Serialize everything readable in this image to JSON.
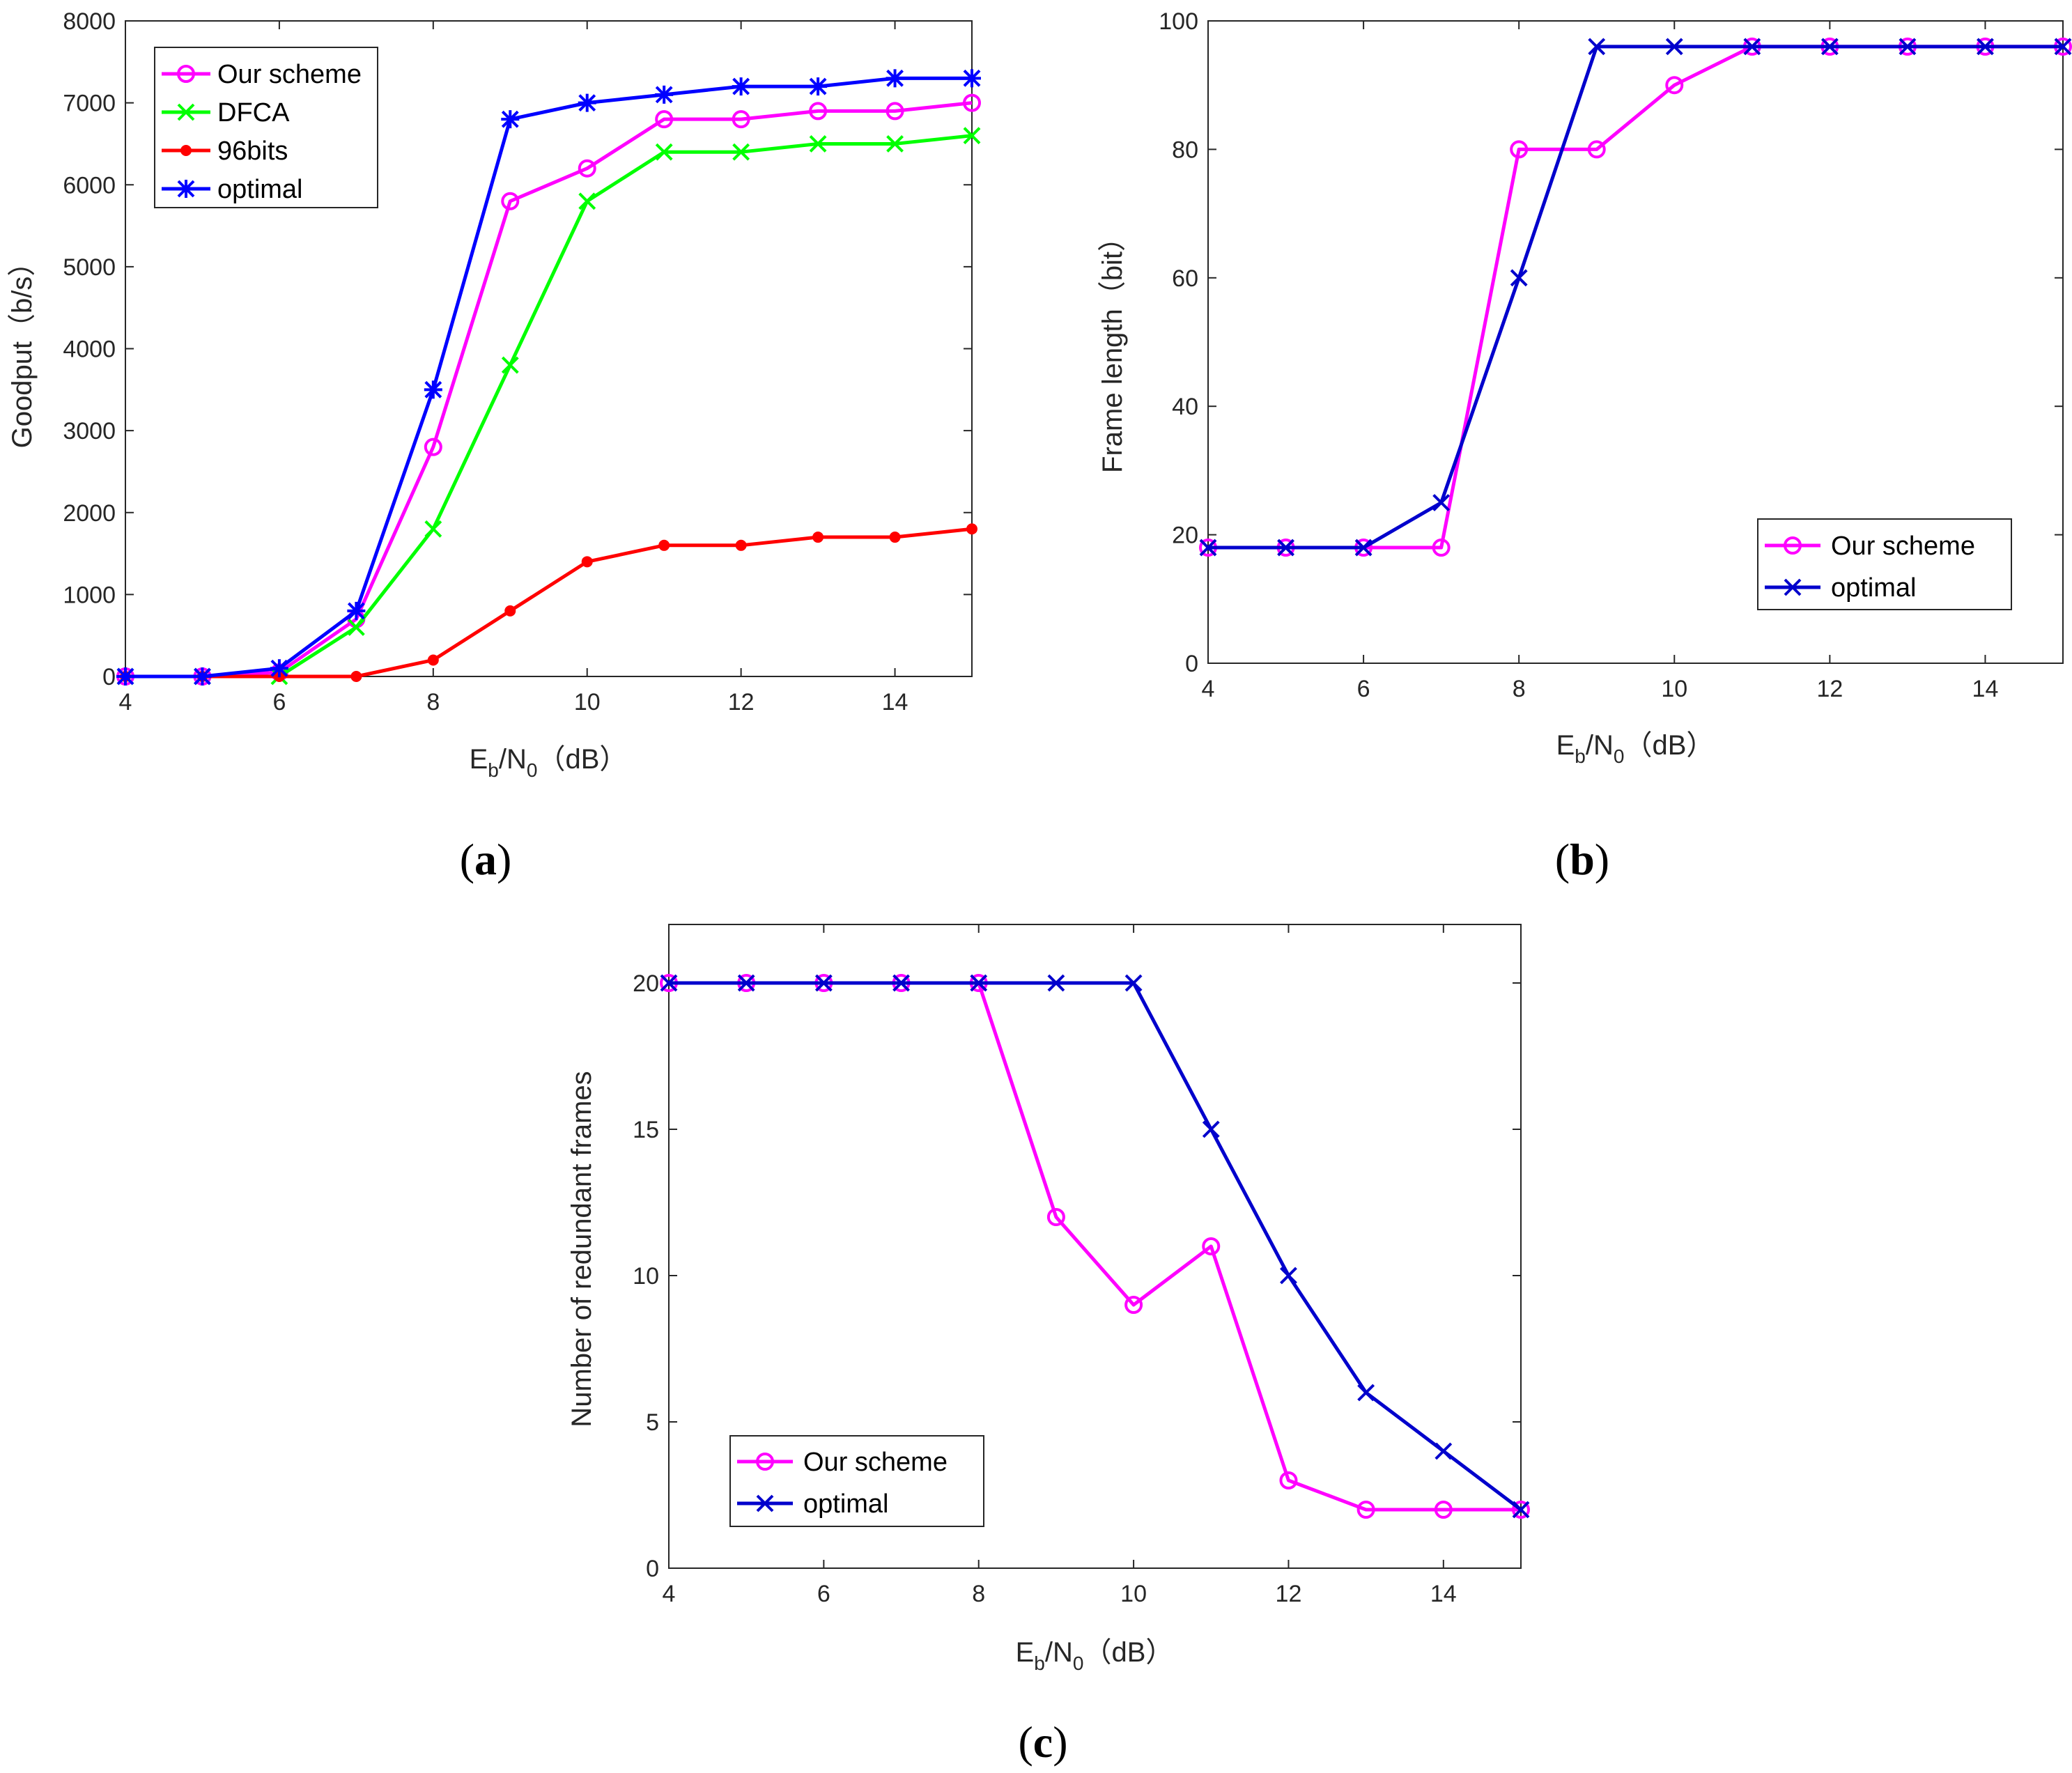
{
  "chart_data": [
    {
      "type": "line",
      "panel": "(a)",
      "panel_letter": "a",
      "x": [
        4,
        5,
        6,
        7,
        8,
        9,
        10,
        11,
        12,
        13,
        14,
        15
      ],
      "xlim": [
        4,
        15
      ],
      "ylim": [
        0,
        8000
      ],
      "xticks": [
        4,
        6,
        8,
        10,
        12,
        14
      ],
      "yticks": [
        0,
        1000,
        2000,
        3000,
        4000,
        5000,
        6000,
        7000,
        8000
      ],
      "xlabel": "E_b/N_0（dB）",
      "xlabel_parts": {
        "E": "E",
        "b": "b",
        "slash": "/N",
        "zero": "0",
        "unit": "（dB）"
      },
      "ylabel": "Goodput（b/s）",
      "legend_position": "top-left",
      "series": [
        {
          "name": "Our scheme",
          "color": "#ff00ff",
          "marker": "circle",
          "values": [
            0,
            0,
            50,
            700,
            2800,
            5800,
            6200,
            6800,
            6800,
            6900,
            6900,
            7000
          ]
        },
        {
          "name": "DFCA",
          "color": "#00ff00",
          "marker": "x",
          "values": [
            0,
            0,
            0,
            600,
            1800,
            3800,
            5800,
            6400,
            6400,
            6500,
            6500,
            6600
          ]
        },
        {
          "name": "96bits",
          "color": "#ff0000",
          "marker": "dot",
          "values": [
            0,
            0,
            0,
            0,
            200,
            800,
            1400,
            1600,
            1600,
            1700,
            1700,
            1800
          ]
        },
        {
          "name": "optimal",
          "color": "#0000ff",
          "marker": "asterisk",
          "values": [
            0,
            0,
            100,
            800,
            3500,
            6800,
            7000,
            7100,
            7200,
            7200,
            7300,
            7300
          ]
        }
      ]
    },
    {
      "type": "line",
      "panel": "(b)",
      "panel_letter": "b",
      "x": [
        4,
        5,
        6,
        7,
        8,
        9,
        10,
        11,
        12,
        13,
        14,
        15
      ],
      "xlim": [
        4,
        15
      ],
      "ylim": [
        0,
        100
      ],
      "xticks": [
        4,
        6,
        8,
        10,
        12,
        14
      ],
      "yticks": [
        0,
        20,
        40,
        60,
        80,
        100
      ],
      "xlabel": "E_b/N_0（dB）",
      "xlabel_parts": {
        "E": "E",
        "b": "b",
        "slash": "/N",
        "zero": "0",
        "unit": "（dB）"
      },
      "ylabel": "Frame length（bit）",
      "legend_position": "bottom-right",
      "series": [
        {
          "name": "Our scheme",
          "color": "#ff00ff",
          "marker": "circle",
          "values": [
            18,
            18,
            18,
            18,
            80,
            80,
            90,
            96,
            96,
            96,
            96,
            96
          ]
        },
        {
          "name": "optimal",
          "color": "#0000cc",
          "marker": "x",
          "values": [
            18,
            18,
            18,
            25,
            60,
            96,
            96,
            96,
            96,
            96,
            96,
            96
          ]
        }
      ]
    },
    {
      "type": "line",
      "panel": "(c)",
      "panel_letter": "c",
      "x": [
        4,
        5,
        6,
        7,
        8,
        9,
        10,
        11,
        12,
        13,
        14,
        15
      ],
      "xlim": [
        4,
        15
      ],
      "ylim": [
        0,
        22
      ],
      "xticks": [
        4,
        6,
        8,
        10,
        12,
        14
      ],
      "yticks": [
        0,
        5,
        10,
        15,
        20
      ],
      "xlabel": "E_b/N_0（dB）",
      "xlabel_parts": {
        "E": "E",
        "b": "b",
        "slash": "/N",
        "zero": "0",
        "unit": "（dB）"
      },
      "ylabel": "Number of redundant frames",
      "legend_position": "bottom-left",
      "series": [
        {
          "name": "Our scheme",
          "color": "#ff00ff",
          "marker": "circle",
          "values": [
            20,
            20,
            20,
            20,
            20,
            12,
            9,
            11,
            3,
            2,
            2,
            2
          ]
        },
        {
          "name": "optimal",
          "color": "#0000cc",
          "marker": "x",
          "values": [
            20,
            20,
            20,
            20,
            20,
            20,
            20,
            15,
            10,
            6,
            4,
            2
          ]
        }
      ]
    }
  ]
}
